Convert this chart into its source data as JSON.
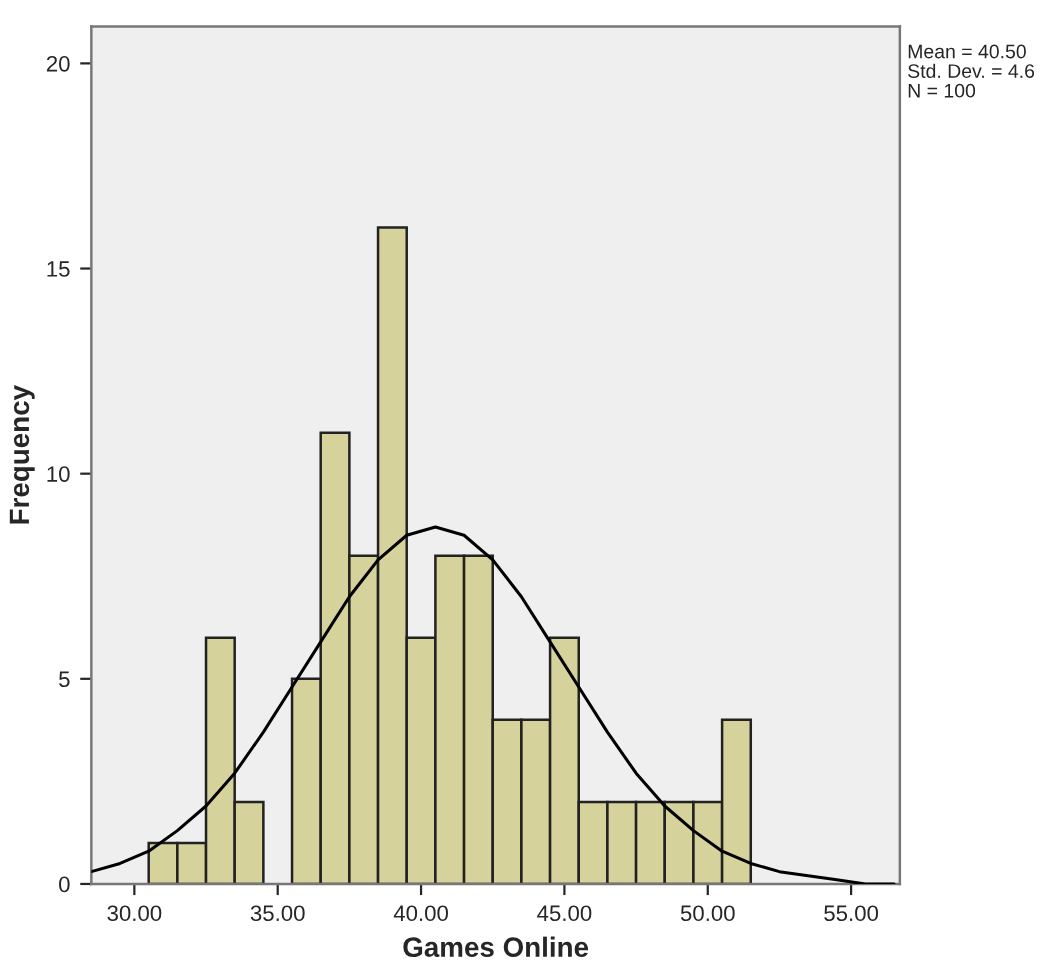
{
  "chart_data": {
    "type": "histogram",
    "xlabel": "Games Online",
    "ylabel": "Frequency",
    "bins": [
      30.5,
      31.5,
      32.5,
      33.5,
      34.5,
      35.5,
      36.5,
      37.5,
      38.5,
      39.5,
      40.5,
      41.5,
      42.5,
      43.5,
      44.5,
      45.5,
      46.5,
      47.5,
      48.5,
      49.5,
      50.5,
      51.5
    ],
    "values": [
      1,
      1,
      6,
      2,
      0,
      5,
      11,
      8,
      16,
      6,
      8,
      8,
      4,
      4,
      6,
      2,
      2,
      2,
      2,
      2,
      4
    ],
    "color": "#d5d29b",
    "series": [
      {
        "type": "line",
        "color": "#000000",
        "x": [
          28.5,
          29.5,
          30.5,
          31.5,
          32.5,
          33.5,
          34.5,
          35.5,
          36.5,
          37.5,
          38.5,
          39.5,
          40.5,
          41.5,
          42.5,
          43.5,
          44.5,
          45.5,
          46.5,
          47.5,
          48.5,
          49.5,
          50.5,
          51.5,
          52.5,
          53.5,
          54.5,
          55.5,
          56.5
        ],
        "values": [
          0.3,
          0.5,
          0.8,
          1.3,
          1.9,
          2.7,
          3.7,
          4.8,
          5.9,
          7.0,
          7.9,
          8.5,
          8.7,
          8.5,
          7.9,
          7.0,
          5.9,
          4.8,
          3.7,
          2.7,
          1.9,
          1.3,
          0.8,
          0.5,
          0.3,
          0.2,
          0.1,
          0.0,
          0.0
        ]
      }
    ],
    "xlim": [
      28.5,
      56.7
    ],
    "ylim": [
      0,
      20.9
    ],
    "xticks": [
      {
        "value": 30,
        "label": "30.00"
      },
      {
        "value": 35,
        "label": "35.00"
      },
      {
        "value": 40,
        "label": "40.00"
      },
      {
        "value": 45,
        "label": "45.00"
      },
      {
        "value": 50,
        "label": "50.00"
      },
      {
        "value": 55,
        "label": "55.00"
      }
    ],
    "yticks": [
      0,
      5,
      10,
      15,
      20
    ],
    "annotations": [
      "Mean = 40.50",
      "Std. Dev. = 4.6",
      "N = 100"
    ]
  }
}
